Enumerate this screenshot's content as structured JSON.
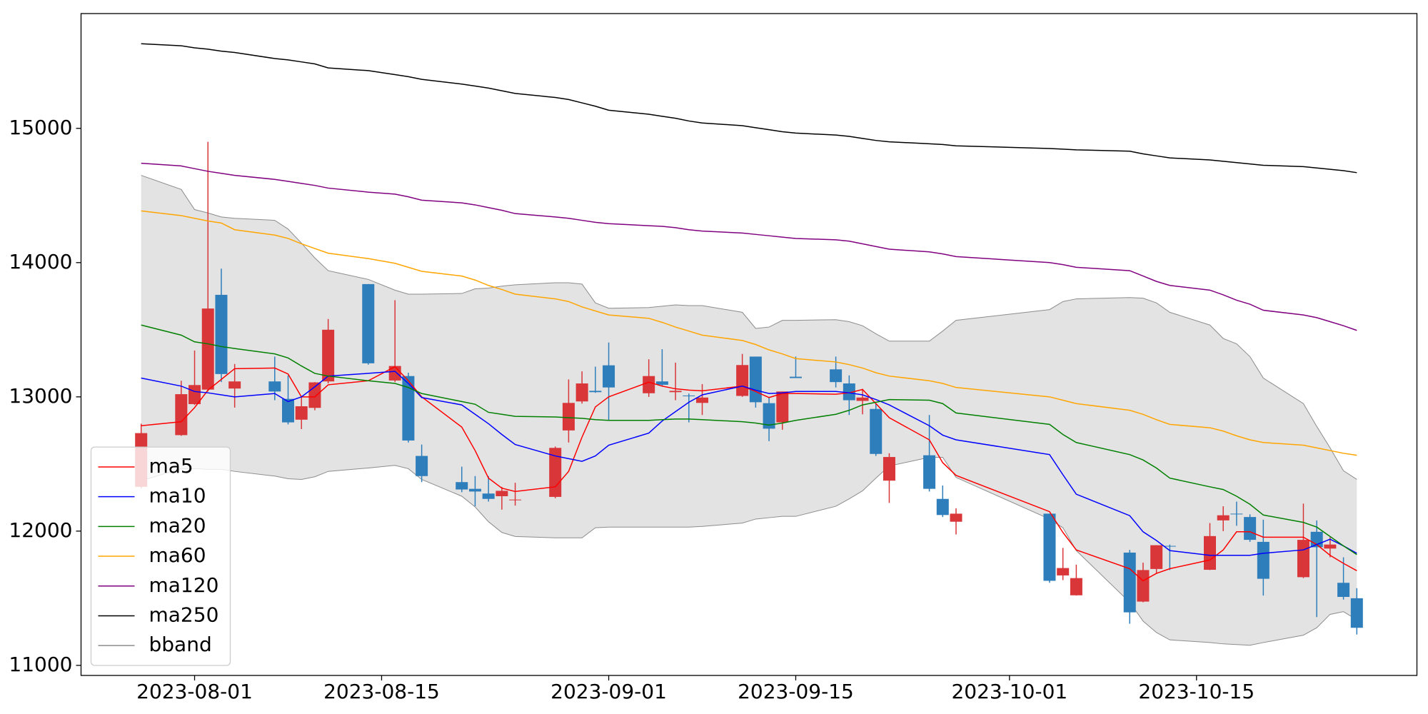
{
  "chart_data": {
    "type": "candlestick",
    "x": [
      "2023-07-28",
      "2023-07-31",
      "2023-08-01",
      "2023-08-02",
      "2023-08-03",
      "2023-08-04",
      "2023-08-07",
      "2023-08-08",
      "2023-08-09",
      "2023-08-10",
      "2023-08-11",
      "2023-08-14",
      "2023-08-16",
      "2023-08-17",
      "2023-08-18",
      "2023-08-21",
      "2023-08-22",
      "2023-08-23",
      "2023-08-24",
      "2023-08-25",
      "2023-08-28",
      "2023-08-29",
      "2023-08-30",
      "2023-08-31",
      "2023-09-01",
      "2023-09-04",
      "2023-09-05",
      "2023-09-06",
      "2023-09-07",
      "2023-09-08",
      "2023-09-11",
      "2023-09-12",
      "2023-09-13",
      "2023-09-14",
      "2023-09-15",
      "2023-09-18",
      "2023-09-19",
      "2023-09-20",
      "2023-09-21",
      "2023-09-22",
      "2023-09-25",
      "2023-09-26",
      "2023-09-27",
      "2023-10-04",
      "2023-10-05",
      "2023-10-06",
      "2023-10-10",
      "2023-10-11",
      "2023-10-12",
      "2023-10-13",
      "2023-10-16",
      "2023-10-17",
      "2023-10-18",
      "2023-10-19",
      "2023-10-20",
      "2023-10-23",
      "2023-10-24",
      "2023-10-25",
      "2023-10-26",
      "2023-10-27"
    ],
    "open": [
      12330,
      12715,
      12946,
      13054,
      13760,
      13062,
      13115,
      12985,
      12830,
      12918,
      13115,
      13840,
      13122,
      13155,
      12560,
      12365,
      12315,
      12280,
      12260,
      12230,
      12255,
      12750,
      12966,
      13045,
      13235,
      13027,
      13115,
      13035,
      13010,
      12955,
      13007,
      13300,
      12953,
      12810,
      13150,
      13205,
      13100,
      12970,
      12910,
      12376,
      12565,
      12240,
      12070,
      12130,
      11670,
      11522,
      11840,
      11475,
      11718,
      11890,
      11712,
      12080,
      12130,
      12105,
      11920,
      11657,
      11995,
      11870,
      11615,
      11500
    ],
    "high": [
      12800,
      13120,
      13345,
      14900,
      13955,
      13245,
      13300,
      13160,
      12995,
      13110,
      13580,
      13840,
      13720,
      13180,
      12645,
      12480,
      12410,
      12410,
      12330,
      12360,
      12630,
      13130,
      13190,
      13225,
      13405,
      13280,
      13355,
      13255,
      13025,
      13095,
      13320,
      13300,
      13000,
      13040,
      13300,
      13300,
      13160,
      13060,
      12950,
      12580,
      12865,
      12340,
      12170,
      12130,
      11875,
      11750,
      11860,
      11765,
      11895,
      11900,
      12060,
      12185,
      12220,
      12125,
      12085,
      12205,
      12080,
      11955,
      11805,
      11575
    ],
    "low": [
      12320,
      12710,
      12940,
      13040,
      13110,
      12920,
      12975,
      12795,
      12760,
      12900,
      13100,
      13240,
      13110,
      12660,
      12365,
      12290,
      12185,
      12220,
      12160,
      12190,
      12245,
      12660,
      12950,
      13030,
      12825,
      13000,
      13080,
      12975,
      12810,
      12865,
      13000,
      12920,
      12670,
      12755,
      13140,
      13070,
      12865,
      12870,
      12560,
      12210,
      12295,
      12105,
      11975,
      11615,
      11635,
      11520,
      11310,
      11470,
      11685,
      11710,
      11710,
      12000,
      12040,
      11920,
      11520,
      11650,
      11360,
      11805,
      11490,
      11230
    ],
    "close": [
      12730,
      13020,
      13088,
      13658,
      13170,
      13115,
      13040,
      12810,
      12930,
      13108,
      13500,
      13250,
      13230,
      12675,
      12410,
      12310,
      12295,
      12240,
      12300,
      12235,
      12620,
      12955,
      13100,
      13035,
      13070,
      13155,
      13090,
      13045,
      13005,
      12995,
      13237,
      12960,
      12763,
      13040,
      13140,
      13110,
      12975,
      12995,
      12575,
      12552,
      12315,
      12120,
      12130,
      11630,
      11725,
      11650,
      11395,
      11710,
      11895,
      11885,
      11963,
      12118,
      12125,
      11935,
      11645,
      11935,
      11880,
      11900,
      11510,
      11280
    ],
    "up_color": "#d9363a",
    "down_color": "#2e7ebc",
    "series": [
      {
        "name": "ma5",
        "color": "red",
        "values": [
          12785,
          12815,
          12920,
          13050,
          13130,
          13210,
          13215,
          13170,
          13000,
          13000,
          13090,
          13120,
          13225,
          13120,
          13000,
          12775,
          12600,
          12395,
          12320,
          12295,
          12330,
          12445,
          12700,
          12925,
          13000,
          13110,
          13080,
          13060,
          13050,
          13045,
          13080,
          13040,
          12995,
          13025,
          13025,
          13020,
          13030,
          13055,
          12950,
          12845,
          12680,
          12510,
          12415,
          12145,
          11990,
          11860,
          11720,
          11630,
          11685,
          11720,
          11785,
          11860,
          11995,
          11995,
          11955,
          11955,
          11900,
          11820,
          11760,
          11705
        ]
      },
      {
        "name": "ma10",
        "color": "blue",
        "values": [
          13140,
          13080,
          13040,
          13030,
          13015,
          13000,
          13025,
          12965,
          13000,
          13075,
          13155,
          13175,
          13190,
          13100,
          12995,
          12940,
          12870,
          12800,
          12720,
          12645,
          12560,
          12540,
          12520,
          12560,
          12640,
          12730,
          12820,
          12890,
          12960,
          13015,
          13080,
          13050,
          13025,
          13030,
          13040,
          13040,
          13030,
          13015,
          12980,
          12940,
          12785,
          12715,
          12680,
          12570,
          12420,
          12275,
          12115,
          11995,
          11930,
          11855,
          11820,
          11820,
          11820,
          11820,
          11835,
          11860,
          11900,
          11940,
          11890,
          11835
        ]
      },
      {
        "name": "ma20",
        "color": "green",
        "values": [
          13535,
          13460,
          13410,
          13395,
          13375,
          13360,
          13320,
          13290,
          13230,
          13175,
          13155,
          13120,
          13100,
          13070,
          13025,
          12965,
          12945,
          12885,
          12870,
          12855,
          12850,
          12845,
          12840,
          12830,
          12825,
          12825,
          12830,
          12835,
          12835,
          12830,
          12815,
          12805,
          12790,
          12805,
          12825,
          12870,
          12900,
          12940,
          12960,
          12980,
          12975,
          12950,
          12880,
          12795,
          12720,
          12660,
          12570,
          12530,
          12470,
          12395,
          12330,
          12310,
          12260,
          12200,
          12120,
          12065,
          12030,
          11960,
          11890,
          11825
        ]
      },
      {
        "name": "ma60",
        "color": "orange",
        "values": [
          14385,
          14350,
          14330,
          14310,
          14295,
          14245,
          14205,
          14180,
          14140,
          14105,
          14070,
          14030,
          13995,
          13965,
          13935,
          13900,
          13870,
          13830,
          13800,
          13765,
          13730,
          13710,
          13670,
          13640,
          13610,
          13585,
          13555,
          13520,
          13490,
          13460,
          13420,
          13390,
          13350,
          13320,
          13285,
          13260,
          13240,
          13215,
          13180,
          13155,
          13120,
          13100,
          13070,
          13000,
          12975,
          12950,
          12900,
          12870,
          12830,
          12795,
          12770,
          12745,
          12710,
          12680,
          12660,
          12640,
          12620,
          12600,
          12580,
          12565
        ]
      },
      {
        "name": "ma120",
        "color": "purple",
        "values": [
          14740,
          14720,
          14700,
          14680,
          14665,
          14650,
          14620,
          14605,
          14590,
          14575,
          14555,
          14525,
          14510,
          14490,
          14465,
          14445,
          14430,
          14410,
          14390,
          14365,
          14340,
          14330,
          14315,
          14300,
          14290,
          14275,
          14270,
          14260,
          14245,
          14235,
          14220,
          14210,
          14200,
          14190,
          14180,
          14170,
          14160,
          14140,
          14120,
          14100,
          14080,
          14065,
          14045,
          14000,
          13985,
          13965,
          13940,
          13900,
          13860,
          13830,
          13795,
          13760,
          13720,
          13690,
          13645,
          13610,
          13590,
          13560,
          13530,
          13495
        ]
      },
      {
        "name": "ma250",
        "color": "black",
        "values": [
          15630,
          15615,
          15600,
          15590,
          15575,
          15565,
          15520,
          15510,
          15495,
          15480,
          15450,
          15430,
          15400,
          15385,
          15365,
          15330,
          15315,
          15300,
          15280,
          15260,
          15230,
          15215,
          15190,
          15165,
          15135,
          15105,
          15090,
          15075,
          15055,
          15040,
          15020,
          15005,
          14990,
          14975,
          14965,
          14950,
          14940,
          14925,
          14910,
          14900,
          14885,
          14880,
          14870,
          14850,
          14845,
          14840,
          14830,
          14810,
          14795,
          14780,
          14765,
          14755,
          14745,
          14735,
          14725,
          14715,
          14705,
          14695,
          14685,
          14670
        ]
      }
    ],
    "band": {
      "name": "bband",
      "color": "#8c8c8c",
      "fill": "#e3e3e3",
      "upper": [
        14650,
        14545,
        14395,
        14370,
        14340,
        14330,
        14315,
        14250,
        14145,
        14035,
        13940,
        13875,
        13795,
        13765,
        13765,
        13770,
        13805,
        13810,
        13825,
        13835,
        13850,
        13850,
        13840,
        13700,
        13660,
        13665,
        13675,
        13685,
        13680,
        13680,
        13630,
        13510,
        13520,
        13570,
        13570,
        13575,
        13560,
        13530,
        13470,
        13415,
        13415,
        13490,
        13570,
        13650,
        13710,
        13730,
        13740,
        13735,
        13700,
        13630,
        13535,
        13435,
        13395,
        13300,
        13140,
        12950,
        12780,
        12620,
        12450,
        12385
      ],
      "lower": [
        12375,
        12465,
        12465,
        12460,
        12460,
        12445,
        12410,
        12390,
        12385,
        12405,
        12445,
        12470,
        12490,
        12465,
        12385,
        12260,
        12180,
        12070,
        11990,
        11960,
        11950,
        11950,
        11950,
        12025,
        12030,
        12030,
        12030,
        12030,
        12030,
        12035,
        12060,
        12090,
        12100,
        12110,
        12110,
        12185,
        12240,
        12300,
        12395,
        12485,
        12550,
        12550,
        12400,
        12090,
        12025,
        11855,
        11470,
        11330,
        11245,
        11190,
        11170,
        11160,
        11155,
        11150,
        11170,
        11225,
        11280,
        11380,
        11400,
        11340
      ]
    },
    "xlim": [
      "2023-07-23T12:00Z",
      "2023-10-31T12:00Z"
    ],
    "xticks": [
      "2023-08-01",
      "2023-08-15",
      "2023-09-01",
      "2023-09-15",
      "2023-10-01",
      "2023-10-15"
    ],
    "ylim": [
      10925,
      15855
    ],
    "yticks": [
      11000,
      12000,
      13000,
      14000,
      15000
    ],
    "legend": "lower left"
  }
}
